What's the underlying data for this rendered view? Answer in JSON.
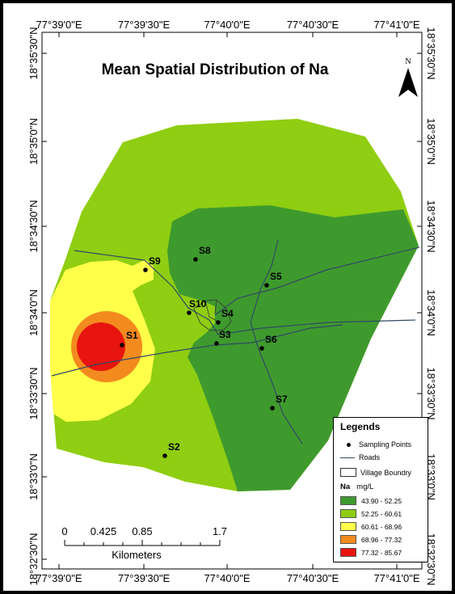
{
  "title": "Mean Spatial Distribution of Na",
  "north_label": "N",
  "lon_ticks": [
    "77°39'0\"E",
    "77°39'30\"E",
    "77°40'0\"E",
    "77°40'30\"E",
    "77°41'0\"E"
  ],
  "lat_ticks": [
    "18°35'30\"N",
    "18°35'0\"N",
    "18°34'30\"N",
    "18°34'0\"N",
    "18°33'30\"N",
    "18°33'0\"N",
    "18°32'30\"N"
  ],
  "sampling_points": [
    {
      "id": "S1",
      "label": "S1"
    },
    {
      "id": "S2",
      "label": "S2"
    },
    {
      "id": "S3",
      "label": "S3"
    },
    {
      "id": "S4",
      "label": "S4"
    },
    {
      "id": "S5",
      "label": "S5"
    },
    {
      "id": "S6",
      "label": "S6"
    },
    {
      "id": "S7",
      "label": "S7"
    },
    {
      "id": "S8",
      "label": "S8"
    },
    {
      "id": "S9",
      "label": "S9"
    },
    {
      "id": "S10",
      "label": "S10"
    }
  ],
  "legend": {
    "title": "Legends",
    "sampling_points": "Sampling Points",
    "roads": "Roads",
    "village": "Village Boundry",
    "variable": "Na",
    "unit": "mg/L",
    "classes": [
      {
        "range": "43.90 - 52.25",
        "color": "#3f9a2e"
      },
      {
        "range": "52.25 - 60.61",
        "color": "#8fce12"
      },
      {
        "range": "60.61 - 68.96",
        "color": "#ffff4a"
      },
      {
        "range": "68.96 - 77.32",
        "color": "#f38a1e"
      },
      {
        "range": "77.32 - 85.67",
        "color": "#e8140e"
      }
    ]
  },
  "scale_bar": {
    "ticks": [
      "0",
      "0.425",
      "0.85",
      "1.7"
    ],
    "unit": "Kilometers"
  }
}
